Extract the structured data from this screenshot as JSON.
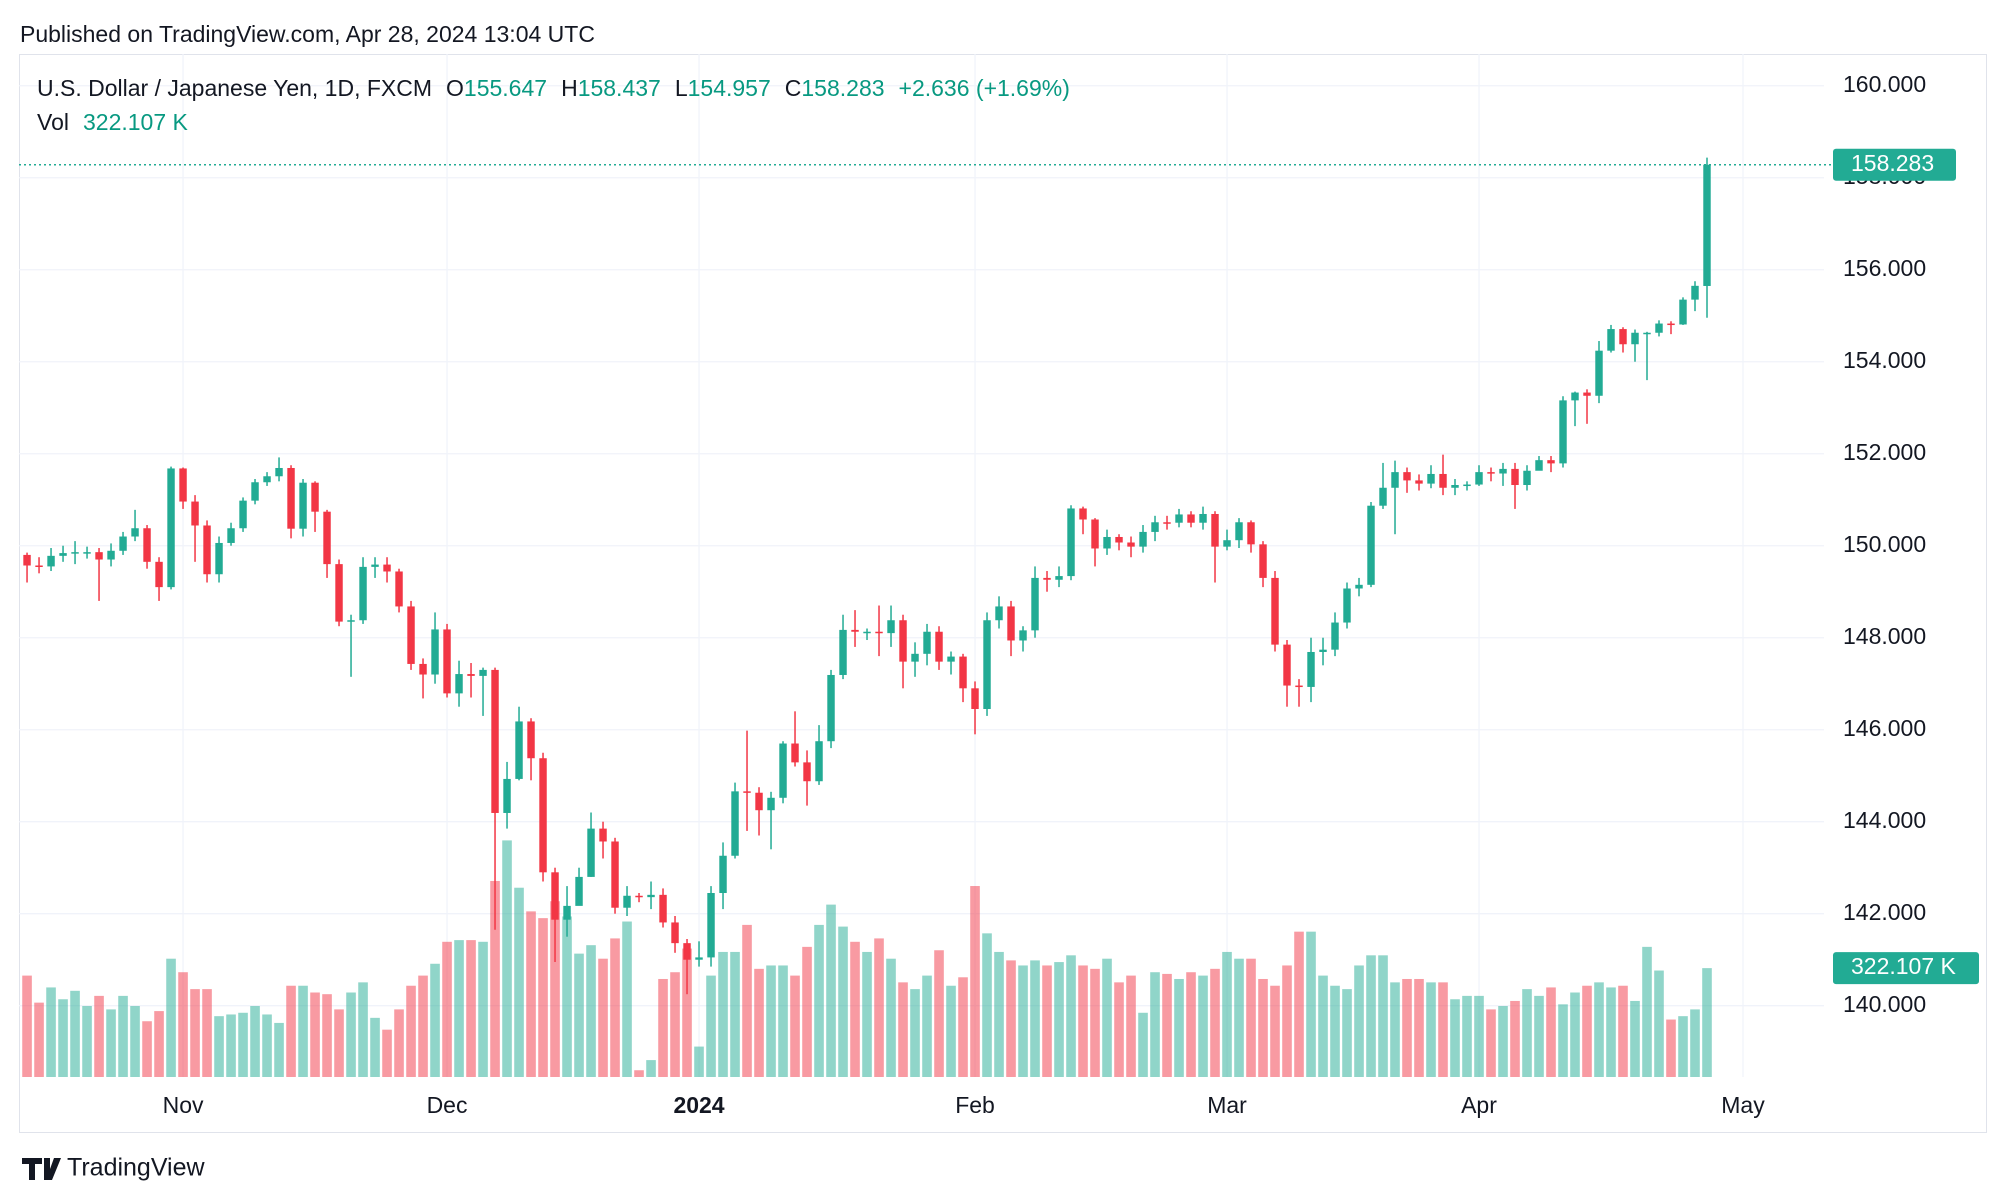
{
  "published": "Published on TradingView.com, Apr 28, 2024 13:04 UTC",
  "brand": "TradingView",
  "header": {
    "symbol": "U.S. Dollar / Japanese Yen, 1D, FXCM",
    "open_label": "O",
    "high_label": "H",
    "low_label": "L",
    "close_label": "C",
    "change": "+2.636 (+1.69%)",
    "vol_label": "Vol"
  },
  "chart_data": {
    "type": "candlestick",
    "up_color": "#22ab94",
    "down_color": "#f23645",
    "grid": true,
    "xlim": [
      -0.67,
      149.75
    ],
    "xticks": [
      {
        "value": 13,
        "label": "Nov"
      },
      {
        "value": 35,
        "label": "Dec"
      },
      {
        "value": 56,
        "label": "2024"
      },
      {
        "value": 79,
        "label": "Feb"
      },
      {
        "value": 100,
        "label": "Mar"
      },
      {
        "value": 121,
        "label": "Apr"
      },
      {
        "value": 143,
        "label": "May"
      }
    ],
    "ylim": [
      138.45,
      160.69
    ],
    "yticks": [
      {
        "value": 140,
        "label": "140.000"
      },
      {
        "value": 142,
        "label": "142.000"
      },
      {
        "value": 144,
        "label": "144.000"
      },
      {
        "value": 146,
        "label": "146.000"
      },
      {
        "value": 148,
        "label": "148.000"
      },
      {
        "value": 150,
        "label": "150.000"
      },
      {
        "value": 152,
        "label": "152.000"
      },
      {
        "value": 154,
        "label": "154.000"
      },
      {
        "value": 156,
        "label": "156.000"
      },
      {
        "value": 158,
        "label": "158.000"
      },
      {
        "value": 160,
        "label": "160.000"
      }
    ],
    "open": [
      149.8,
      149.57,
      149.55,
      149.78,
      149.84,
      149.86,
      149.86,
      149.7,
      149.89,
      150.2,
      150.38,
      149.65,
      149.1,
      151.68,
      150.96,
      150.44,
      149.38,
      150.06,
      150.38,
      150.98,
      151.38,
      151.51,
      151.69,
      150.37,
      151.37,
      150.74,
      149.6,
      148.35,
      148.38,
      149.54,
      149.59,
      149.44,
      148.68,
      147.43,
      147.2,
      148.18,
      146.79,
      147.21,
      147.17,
      147.3,
      144.19,
      144.93,
      146.18,
      145.38,
      142.9,
      141.87,
      142.17,
      142.8,
      143.85,
      143.57,
      142.13,
      142.39,
      142.36,
      142.41,
      141.81,
      141.36,
      141.0,
      141.05,
      142.45,
      143.26,
      144.66,
      144.63,
      144.25,
      144.52,
      145.7,
      145.29,
      144.88,
      145.75,
      147.19,
      148.17,
      148.13,
      148.13,
      148.1,
      148.38,
      147.48,
      147.65,
      148.13,
      147.48,
      147.59,
      146.9,
      146.45,
      148.38,
      148.68,
      147.94,
      148.16,
      149.3,
      149.26,
      149.34,
      150.81,
      150.57,
      149.94,
      150.19,
      150.07,
      149.98,
      150.3,
      150.51,
      150.5,
      150.68,
      150.5,
      150.69,
      149.98,
      150.12,
      150.51,
      150.03,
      149.3,
      147.85,
      146.96,
      146.93,
      147.69,
      147.74,
      148.33,
      149.07,
      149.15,
      150.87,
      151.26,
      151.6,
      151.42,
      151.35,
      151.56,
      151.26,
      151.32,
      151.33,
      151.6,
      151.57,
      151.67,
      151.32,
      151.63,
      151.86,
      151.79,
      153.16,
      153.33,
      153.26,
      154.24,
      154.71,
      154.38,
      154.63,
      154.63,
      154.83,
      154.81,
      155.35,
      155.647
    ],
    "high": [
      149.85,
      149.75,
      149.95,
      150.0,
      150.1,
      149.98,
      149.95,
      150.05,
      150.3,
      150.78,
      150.45,
      149.75,
      151.72,
      151.7,
      151.1,
      150.55,
      150.2,
      150.5,
      151.05,
      151.45,
      151.6,
      151.92,
      151.75,
      151.45,
      151.4,
      150.78,
      149.7,
      148.5,
      149.75,
      149.75,
      149.75,
      149.5,
      148.8,
      147.55,
      148.55,
      148.3,
      147.5,
      147.45,
      147.35,
      147.35,
      145.3,
      146.5,
      146.25,
      145.5,
      143.0,
      142.6,
      143.0,
      144.2,
      144.0,
      143.65,
      142.6,
      142.45,
      142.7,
      142.55,
      141.95,
      141.45,
      141.4,
      142.6,
      143.55,
      144.85,
      145.98,
      144.75,
      144.65,
      145.75,
      146.4,
      145.55,
      146.1,
      147.3,
      148.5,
      148.6,
      148.2,
      148.7,
      148.7,
      148.5,
      147.9,
      148.3,
      148.25,
      147.7,
      147.65,
      147.05,
      148.55,
      148.9,
      148.8,
      148.25,
      149.55,
      149.45,
      149.55,
      150.88,
      150.85,
      150.6,
      150.35,
      150.25,
      150.2,
      150.45,
      150.65,
      150.65,
      150.8,
      150.75,
      150.85,
      150.75,
      150.35,
      150.6,
      150.55,
      150.1,
      149.45,
      147.95,
      147.1,
      148.0,
      148.0,
      148.55,
      149.2,
      149.3,
      150.95,
      151.8,
      151.85,
      151.7,
      151.55,
      151.75,
      151.98,
      151.45,
      151.4,
      151.75,
      151.7,
      151.8,
      151.8,
      151.75,
      151.95,
      151.95,
      153.25,
      153.35,
      153.4,
      154.45,
      154.8,
      154.75,
      154.7,
      154.65,
      154.9,
      154.88,
      155.4,
      155.75,
      158.437
    ],
    "low": [
      149.2,
      149.4,
      149.45,
      149.65,
      149.6,
      149.72,
      148.8,
      149.55,
      149.8,
      150.1,
      149.5,
      148.8,
      149.05,
      150.8,
      149.65,
      149.2,
      149.2,
      150.0,
      150.3,
      150.9,
      151.3,
      151.4,
      150.16,
      150.2,
      150.3,
      149.3,
      148.25,
      147.15,
      148.3,
      149.3,
      149.2,
      148.55,
      147.3,
      146.68,
      147.0,
      146.7,
      146.5,
      146.7,
      146.3,
      141.65,
      143.85,
      144.9,
      144.9,
      142.7,
      140.95,
      141.5,
      142.2,
      142.8,
      143.2,
      142.0,
      141.95,
      142.25,
      142.1,
      141.7,
      141.15,
      140.25,
      140.85,
      140.85,
      142.1,
      143.2,
      143.8,
      143.7,
      143.4,
      144.4,
      145.2,
      144.35,
      144.8,
      145.6,
      147.1,
      147.8,
      147.95,
      147.6,
      147.8,
      146.9,
      147.15,
      147.4,
      147.3,
      147.2,
      146.6,
      145.9,
      146.3,
      148.2,
      147.6,
      147.7,
      148.0,
      149.0,
      149.1,
      149.25,
      150.25,
      149.55,
      149.8,
      149.9,
      149.75,
      149.85,
      150.1,
      150.35,
      150.4,
      150.4,
      150.35,
      149.2,
      149.9,
      149.95,
      149.85,
      149.1,
      147.7,
      146.5,
      146.5,
      146.6,
      147.4,
      147.6,
      148.2,
      148.9,
      149.1,
      150.8,
      150.25,
      151.15,
      151.2,
      151.25,
      151.1,
      151.1,
      151.2,
      151.3,
      151.4,
      151.3,
      150.8,
      151.2,
      151.7,
      151.6,
      151.7,
      152.6,
      152.65,
      153.1,
      154.2,
      154.2,
      154.0,
      153.6,
      154.55,
      154.6,
      154.8,
      155.1,
      154.957
    ],
    "close": [
      149.57,
      149.55,
      149.78,
      149.84,
      149.86,
      149.86,
      149.7,
      149.89,
      150.2,
      150.38,
      149.65,
      149.1,
      151.68,
      150.96,
      150.44,
      149.38,
      150.06,
      150.38,
      150.98,
      151.38,
      151.51,
      151.69,
      150.37,
      151.37,
      150.74,
      149.6,
      148.35,
      148.38,
      149.54,
      149.59,
      149.44,
      148.68,
      147.43,
      147.2,
      148.18,
      146.79,
      147.21,
      147.17,
      147.3,
      144.19,
      144.93,
      146.18,
      145.38,
      142.9,
      141.87,
      142.17,
      142.8,
      143.85,
      143.57,
      142.13,
      142.39,
      142.36,
      142.41,
      141.81,
      141.36,
      141.0,
      141.05,
      142.45,
      143.26,
      144.66,
      144.63,
      144.25,
      144.52,
      145.7,
      145.29,
      144.88,
      145.75,
      147.19,
      148.17,
      148.13,
      148.13,
      148.1,
      148.38,
      147.48,
      147.65,
      148.13,
      147.48,
      147.59,
      146.9,
      146.45,
      148.38,
      148.68,
      147.94,
      148.16,
      149.3,
      149.26,
      149.34,
      150.81,
      150.57,
      149.94,
      150.19,
      150.07,
      149.98,
      150.3,
      150.51,
      150.5,
      150.68,
      150.5,
      150.69,
      149.98,
      150.12,
      150.51,
      150.03,
      149.3,
      147.85,
      146.96,
      146.93,
      147.69,
      147.74,
      148.33,
      149.07,
      149.15,
      150.87,
      151.26,
      151.6,
      151.42,
      151.35,
      151.56,
      151.26,
      151.32,
      151.33,
      151.6,
      151.57,
      151.67,
      151.32,
      151.63,
      151.86,
      151.79,
      153.16,
      153.33,
      153.26,
      154.24,
      154.71,
      154.38,
      154.63,
      154.63,
      154.83,
      154.81,
      155.35,
      155.65,
      158.283
    ],
    "volume": [
      300,
      220,
      265,
      230,
      255,
      210,
      240,
      200,
      240,
      210,
      165,
      195,
      350,
      310,
      260,
      260,
      180,
      185,
      190,
      210,
      185,
      160,
      270,
      270,
      250,
      245,
      200,
      250,
      280,
      175,
      140,
      200,
      270,
      300,
      335,
      400,
      405,
      405,
      400,
      580,
      700,
      560,
      490,
      470,
      520,
      475,
      365,
      390,
      350,
      410,
      460,
      20,
      50,
      290,
      310,
      380,
      90,
      300,
      370,
      370,
      450,
      320,
      330,
      330,
      300,
      385,
      450,
      510,
      445,
      400,
      370,
      410,
      350,
      280,
      260,
      300,
      375,
      270,
      295,
      565,
      425,
      370,
      345,
      330,
      345,
      330,
      340,
      360,
      330,
      320,
      350,
      280,
      300,
      190,
      310,
      305,
      290,
      310,
      300,
      320,
      370,
      350,
      350,
      290,
      270,
      330,
      430,
      430,
      300,
      270,
      260,
      330,
      360,
      360,
      280,
      290,
      290,
      280,
      280,
      230,
      240,
      240,
      200,
      210,
      225,
      260,
      240,
      265,
      215,
      250,
      270,
      280,
      265,
      270,
      225,
      385,
      315,
      170,
      180,
      200,
      322.107
    ],
    "volume_last_label": "322.107 K"
  }
}
